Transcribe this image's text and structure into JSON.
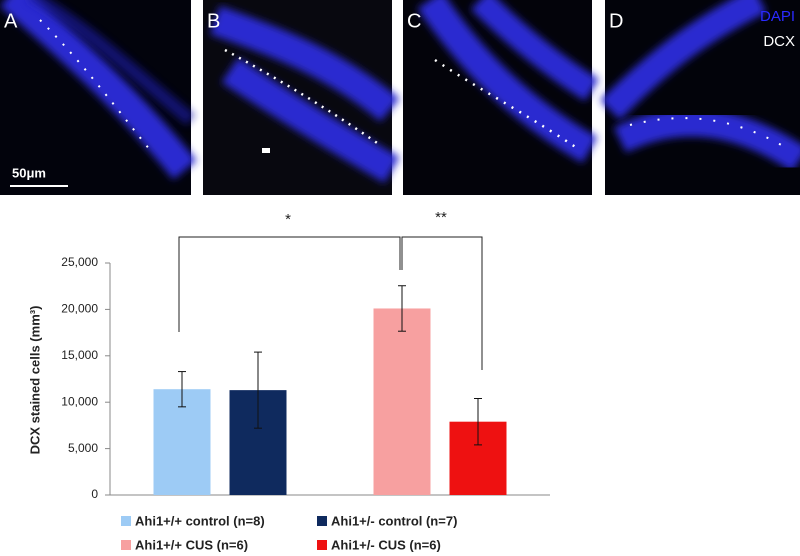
{
  "panels": [
    {
      "label": "A"
    },
    {
      "label": "B"
    },
    {
      "label": "C"
    },
    {
      "label": "D"
    }
  ],
  "scale_bar": "50μm",
  "stain_legend": [
    "DAPI",
    "DCX"
  ],
  "chart_data": {
    "type": "bar",
    "y_label": "DCX stained cells (mm³)",
    "categories": [
      null,
      null
    ],
    "series": [
      {
        "name": "Ahi1+/+ control (n=8)",
        "color": "#9dcbf5",
        "values": [
          11400,
          null
        ],
        "errors": [
          1900,
          null
        ]
      },
      {
        "name": "Ahi1+/- control (n=7)",
        "color": "#0f2a5e",
        "values": [
          11300,
          null
        ],
        "errors": [
          4100,
          null
        ]
      },
      {
        "name": "Ahi1+/+ CUS (n=6)",
        "color": "#f7a0a0",
        "values": [
          null,
          20100
        ],
        "errors": [
          null,
          2450
        ]
      },
      {
        "name": "Ahi1+/- CUS (n=6)",
        "color": "#ee1111",
        "values": [
          null,
          7900
        ],
        "errors": [
          null,
          2500
        ]
      }
    ],
    "annotations": [
      "*",
      "**"
    ],
    "ylim": [
      0,
      25000
    ],
    "yticks": [
      0,
      {
        "value": 5000,
        "label": "5,000"
      },
      {
        "value": 10000,
        "label": "10,000"
      },
      {
        "value": 15000,
        "label": "15,000"
      },
      {
        "value": 20000,
        "label": "20,000"
      },
      {
        "value": 25000,
        "label": "25,000"
      }
    ],
    "grid": false
  }
}
